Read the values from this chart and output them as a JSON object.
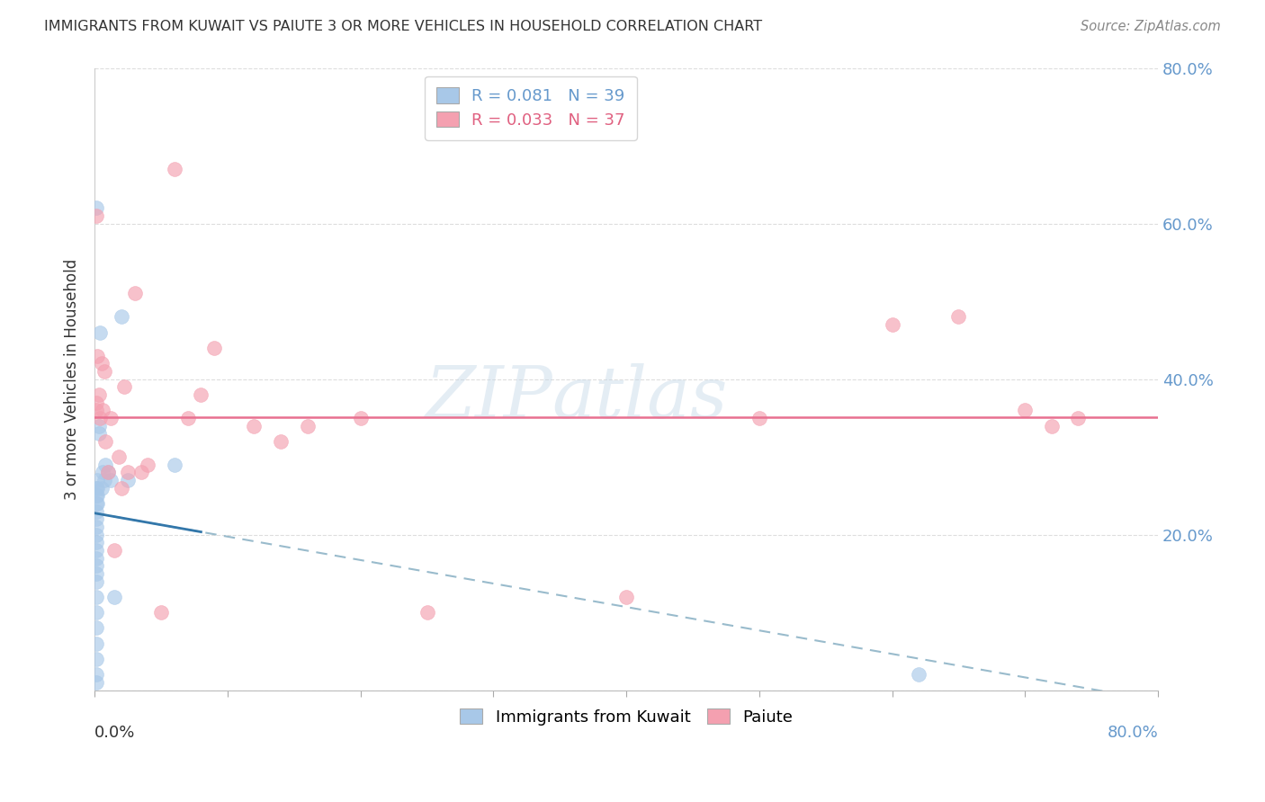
{
  "title": "IMMIGRANTS FROM KUWAIT VS PAIUTE 3 OR MORE VEHICLES IN HOUSEHOLD CORRELATION CHART",
  "source": "Source: ZipAtlas.com",
  "ylabel": "3 or more Vehicles in Household",
  "xlim": [
    0.0,
    0.8
  ],
  "ylim": [
    0.0,
    0.8
  ],
  "series1_color": "#a8c8e8",
  "series1_line_color": "#4488bb",
  "series2_color": "#f4a0b0",
  "series2_line_color": "#e06080",
  "trendline_blue_color": "#aaccdd",
  "trendline_pink_color": "#e87090",
  "legend_r1": "R = 0.081",
  "legend_n1": "N = 39",
  "legend_r2": "R = 0.033",
  "legend_n2": "N = 37",
  "legend_color1": "#6baed6",
  "legend_color2": "#f48080",
  "blue_x": [
    0.001,
    0.001,
    0.001,
    0.001,
    0.001,
    0.001,
    0.001,
    0.001,
    0.001,
    0.001,
    0.001,
    0.001,
    0.001,
    0.001,
    0.001,
    0.001,
    0.001,
    0.001,
    0.001,
    0.001,
    0.002,
    0.002,
    0.002,
    0.002,
    0.003,
    0.003,
    0.004,
    0.005,
    0.006,
    0.007,
    0.008,
    0.01,
    0.012,
    0.015,
    0.02,
    0.025,
    0.06,
    0.62,
    0.001
  ],
  "blue_y": [
    0.26,
    0.25,
    0.24,
    0.23,
    0.22,
    0.21,
    0.2,
    0.19,
    0.18,
    0.17,
    0.16,
    0.15,
    0.14,
    0.12,
    0.1,
    0.08,
    0.06,
    0.04,
    0.02,
    0.01,
    0.27,
    0.26,
    0.25,
    0.24,
    0.34,
    0.33,
    0.46,
    0.26,
    0.28,
    0.27,
    0.29,
    0.28,
    0.27,
    0.12,
    0.48,
    0.27,
    0.29,
    0.02,
    0.62
  ],
  "pink_x": [
    0.001,
    0.001,
    0.001,
    0.002,
    0.003,
    0.004,
    0.005,
    0.006,
    0.007,
    0.008,
    0.01,
    0.012,
    0.015,
    0.018,
    0.02,
    0.022,
    0.025,
    0.03,
    0.035,
    0.04,
    0.05,
    0.06,
    0.07,
    0.08,
    0.09,
    0.12,
    0.14,
    0.16,
    0.2,
    0.25,
    0.4,
    0.5,
    0.6,
    0.65,
    0.7,
    0.72,
    0.74
  ],
  "pink_y": [
    0.36,
    0.61,
    0.37,
    0.43,
    0.38,
    0.35,
    0.42,
    0.36,
    0.41,
    0.32,
    0.28,
    0.35,
    0.18,
    0.3,
    0.26,
    0.39,
    0.28,
    0.51,
    0.28,
    0.29,
    0.1,
    0.67,
    0.35,
    0.38,
    0.44,
    0.34,
    0.32,
    0.34,
    0.35,
    0.1,
    0.12,
    0.35,
    0.47,
    0.48,
    0.36,
    0.34,
    0.35
  ],
  "watermark_line1": "ZIP",
  "watermark_line2": "atlas",
  "background_color": "#ffffff",
  "grid_color": "#dddddd"
}
